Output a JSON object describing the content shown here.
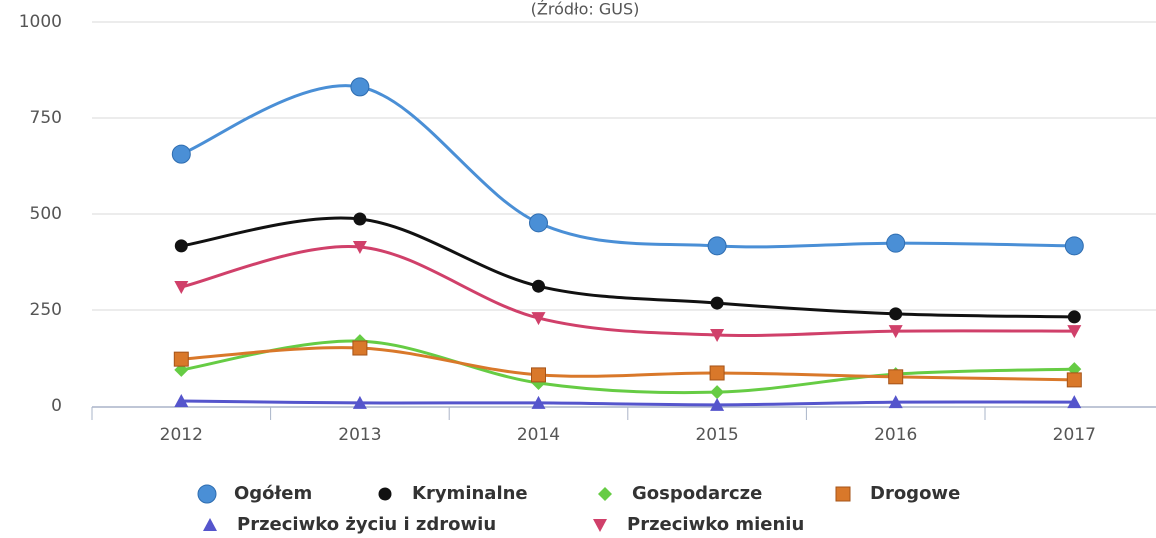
{
  "chart_data": {
    "type": "line",
    "subtitle": "(Źródło: GUS)",
    "categories": [
      "2012",
      "2013",
      "2014",
      "2015",
      "2016",
      "2017"
    ],
    "ylim": [
      0,
      1000
    ],
    "yticks": [
      0,
      250,
      500,
      750,
      1000
    ],
    "grid": true,
    "smooth": true,
    "series": [
      {
        "name": "Ogółem",
        "color": "#4a8fd6",
        "marker": "circle",
        "values": [
          656,
          831,
          477,
          417,
          424,
          417
        ]
      },
      {
        "name": "Kryminalne",
        "color": "#111111",
        "marker": "dot",
        "values": [
          417,
          487,
          312,
          268,
          240,
          232
        ]
      },
      {
        "name": "Gospodarcze",
        "color": "#66cc44",
        "marker": "diamond",
        "values": [
          94,
          169,
          60,
          36,
          83,
          96
        ]
      },
      {
        "name": "Drogowe",
        "color": "#d9782a",
        "marker": "square",
        "values": [
          122,
          151,
          81,
          86,
          76,
          68
        ]
      },
      {
        "name": "Przeciwko życiu i zdrowiu",
        "color": "#5555cc",
        "marker": "triangle",
        "values": [
          13,
          8,
          8,
          3,
          10,
          10
        ]
      },
      {
        "name": "Przeciwko mieniu",
        "color": "#d0406a",
        "marker": "triangle-down",
        "values": [
          310,
          414,
          229,
          185,
          195,
          195
        ]
      }
    ]
  }
}
